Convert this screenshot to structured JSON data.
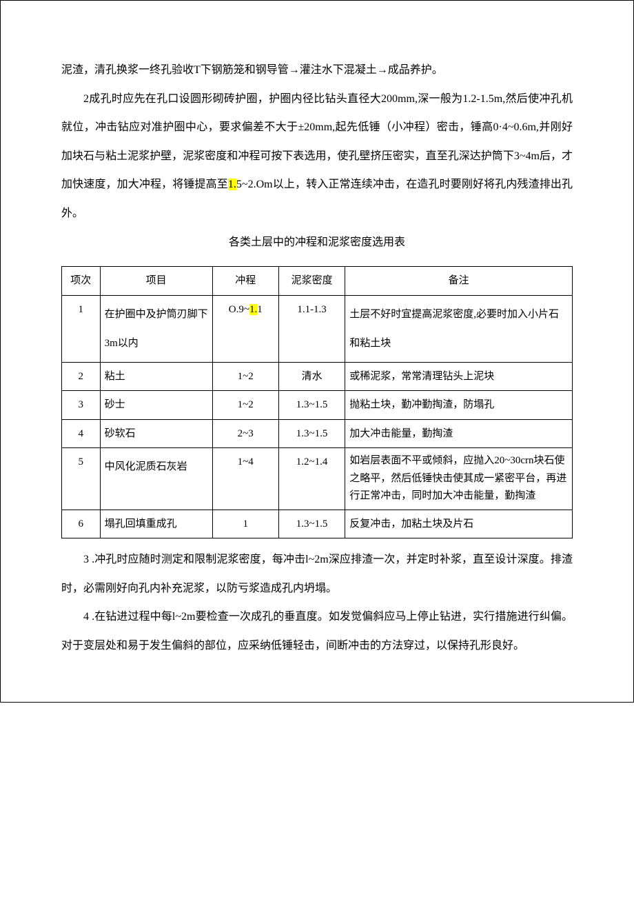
{
  "para1": "泥渣，清孔换浆一终孔验收T下钢筋笼和钢导管→灌注水下混凝土→成品养护。",
  "para2_a": "2成孔时应先在孔口设圆形砌砖护圈，护圈内径比钻头直径大200mm,深一般为1.2-1.5m,然后使冲孔机就位，冲击钻应对准护圈中心，要求偏差不大于±20mm,起先低锤（小冲程）密击，锤高0·4~0.6m,并刚好加块石与粘土泥浆护壁，泥浆密度和冲程可按下表选用，使孔壁挤压密实，直至孔深达护筒下3~4m后，才加快速度，加大冲程，将锤提高至",
  "para2_hl": "1.",
  "para2_b": "5~2.Om以上，转入正常连续冲击，在造孔时要刚好将孔内残渣排出孔外。",
  "table_title": "各类土层中的冲程和泥浆密度选用表",
  "table": {
    "headers": [
      "项次",
      "项目",
      "冲程",
      "泥浆密度",
      "备注"
    ],
    "rows": [
      {
        "no": "1",
        "item": "在护圈中及护筒刃脚下3m以内",
        "stroke_a": "O.9~",
        "stroke_hl": "1.",
        "stroke_b": "1",
        "density": "1.1-1.3",
        "note": "土层不好时宜提高泥浆密度,必要时加入小片石和粘土块"
      },
      {
        "no": "2",
        "item": "粘土",
        "stroke": "1~2",
        "density": "清水",
        "note": "或稀泥浆，常常清理钻头上泥块"
      },
      {
        "no": "3",
        "item": "砂士",
        "stroke": "1~2",
        "density": "1.3~1.5",
        "note": "抛粘土块，勤冲勤掏渣，防塌孔"
      },
      {
        "no": "4",
        "item": "砂软石",
        "stroke": "2~3",
        "density": "1.3~1.5",
        "note": "加大冲击能量，勤掏渣"
      },
      {
        "no": "5",
        "item": "中风化泥质石灰岩",
        "stroke": "1~4",
        "density": "1.2~1.4",
        "note": "如岩层表面不平或倾斜，应抛入20~30crn块石使之略平，然后低锤快击使其成一紧密平台，再进行正常冲击，同时加大冲击能量，勤掏渣"
      },
      {
        "no": "6",
        "item": "塌孔回填重成孔",
        "stroke": "1",
        "density": "1.3~1.5",
        "note": "反复冲击，加粘土块及片石"
      }
    ]
  },
  "para3": "3 .冲孔时应随时测定和限制泥浆密度，每冲击l~2m深应排渣一次，并定时补浆，直至设计深度。排渣时，必需刚好向孔内补充泥浆，以防亏浆造成孔内坍塌。",
  "para4": "4 .在钻进过程中每l~2m要检查一次成孔的垂直度。如发觉偏斜应马上停止钻进，实行措施进行纠偏。对于变层处和易于发生偏斜的部位，应采纳低锤轻击，间断冲击的方法穿过，以保持孔形良好。"
}
